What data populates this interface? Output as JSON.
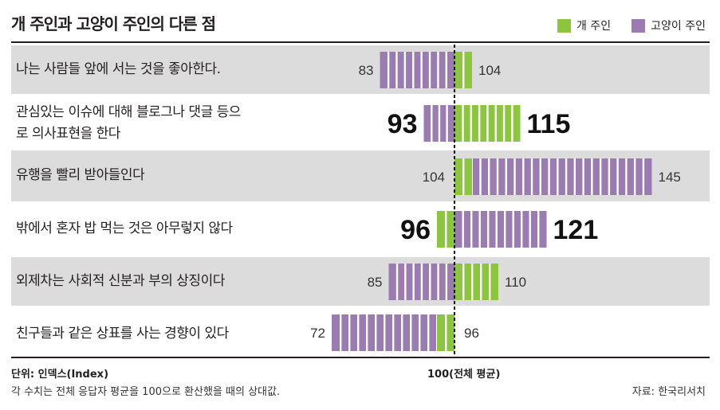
{
  "chart_data": {
    "type": "bar",
    "title": "개 주인과 고양이 주인의 다른 점",
    "legend": [
      {
        "name": "개 주인",
        "color": "#8cc63f"
      },
      {
        "name": "고양이 주인",
        "color": "#9a7cb0"
      }
    ],
    "baseline": 100,
    "baseline_label": "100(전체 평균)",
    "xlim": [
      70,
      150
    ],
    "categories": [
      [
        "나는 사람들 앞에 서는 것을 좋아한다."
      ],
      [
        "관심있는 이슈에 대해 블로그나 댓글 등으",
        "로 의사표현을 한다"
      ],
      [
        "유행을 빨리 받아들인다"
      ],
      [
        "밖에서 혼자 밥 먹는 것은 아무렇지 않다"
      ],
      [
        "외제차는 사회적 신분과 부의 상징이다"
      ],
      [
        "친구들과 같은 상표를 사는 경향이 있다"
      ]
    ],
    "series": [
      {
        "name": "개 주인",
        "values": [
          104,
          115,
          104,
          96,
          110,
          96
        ]
      },
      {
        "name": "고양이 주인",
        "values": [
          83,
          93,
          145,
          121,
          85,
          72
        ]
      }
    ],
    "emphasis": [
      false,
      true,
      false,
      true,
      false,
      false
    ],
    "unit_label": "단위: 인덱스(Index)",
    "note": "각 수치는 전체 응답자 평균을 100으로 환산했을 때의 상대값.",
    "source": "자료: 한국리서치"
  },
  "colors": {
    "dog": "#8cc63f",
    "cat": "#9a7cb0",
    "row_bg": "#dddcdc",
    "text": "#231f20"
  }
}
